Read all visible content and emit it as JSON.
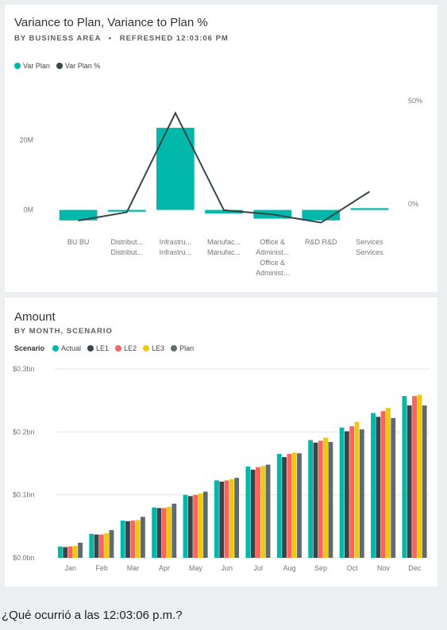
{
  "card1": {
    "title": "Variance to Plan, Variance to Plan %",
    "subtitle_area": "BY BUSINESS AREA",
    "subtitle_sep": "•",
    "subtitle_refreshed": "REFRESHED 12:03:06 PM"
  },
  "card2": {
    "title": "Amount",
    "subtitle": "BY MONTH, SCENARIO"
  },
  "question": "¿Qué ocurrió a las 12:03:06 p.m.?",
  "colors": {
    "teal": "#01b8aa",
    "dark": "#374649",
    "red": "#fd625e",
    "yellow": "#f2c80f",
    "plan": "#5f6b6d"
  },
  "chart_data": [
    {
      "type": "bar",
      "combo_line": true,
      "title": "Variance to Plan, Variance to Plan %",
      "categories": [
        [
          "BU BU"
        ],
        [
          "Distribut...",
          "Distribut..."
        ],
        [
          "Infrastru...",
          "Infrastru..."
        ],
        [
          "Manufac...",
          "Manufac..."
        ],
        [
          "Office &",
          "Administ...",
          "Office &",
          "Administ..."
        ],
        [
          "R&D R&D"
        ],
        [
          "Services",
          "Services"
        ]
      ],
      "series": [
        {
          "name": "Var Plan",
          "kind": "bar",
          "axis": "left",
          "values": [
            -3,
            -0.5,
            23.5,
            -1,
            -2.5,
            -3,
            0.5
          ]
        },
        {
          "name": "Var Plan %",
          "kind": "line",
          "axis": "right",
          "values": [
            -8,
            -4,
            44,
            -3,
            -5,
            -9,
            6
          ]
        }
      ],
      "y_left": {
        "ticks": [
          {
            "v": 20,
            "label": "20M"
          },
          {
            "v": 0,
            "label": "0M"
          }
        ],
        "range": [
          -6,
          36
        ]
      },
      "y_right": {
        "ticks": [
          {
            "v": 50,
            "label": "50%"
          },
          {
            "v": 0,
            "label": "0%"
          }
        ],
        "range": [
          -13,
          58
        ]
      },
      "legend": [
        {
          "name": "Var Plan",
          "color": "#01b8aa"
        },
        {
          "name": "Var Plan %",
          "color": "#374649"
        }
      ]
    },
    {
      "type": "bar",
      "title": "Amount",
      "legend_title": "Scenario",
      "categories": [
        "Jan",
        "Feb",
        "Mar",
        "Apr",
        "May",
        "Jun",
        "Jul",
        "Aug",
        "Sep",
        "Oct",
        "Nov",
        "Dec"
      ],
      "series": [
        {
          "name": "Actual",
          "color": "#01b8aa",
          "values": [
            0.018,
            0.038,
            0.059,
            0.08,
            0.1,
            0.123,
            0.145,
            0.165,
            0.187,
            0.207,
            0.23,
            0.257
          ]
        },
        {
          "name": "LE1",
          "color": "#374649",
          "values": [
            0.017,
            0.037,
            0.058,
            0.079,
            0.098,
            0.121,
            0.14,
            0.16,
            0.183,
            0.201,
            0.224,
            0.242
          ]
        },
        {
          "name": "LE2",
          "color": "#fd625e",
          "values": [
            0.018,
            0.037,
            0.059,
            0.079,
            0.1,
            0.123,
            0.144,
            0.165,
            0.186,
            0.209,
            0.233,
            0.257
          ]
        },
        {
          "name": "LE3",
          "color": "#f2c80f",
          "values": [
            0.019,
            0.039,
            0.06,
            0.081,
            0.102,
            0.125,
            0.146,
            0.167,
            0.191,
            0.216,
            0.238,
            0.259
          ]
        },
        {
          "name": "Plan",
          "color": "#5f6b6d",
          "values": [
            0.024,
            0.044,
            0.065,
            0.086,
            0.105,
            0.127,
            0.148,
            0.166,
            0.184,
            0.204,
            0.222,
            0.242
          ]
        }
      ],
      "y_ticks": [
        {
          "v": 0.3,
          "label": "$0.3bn"
        },
        {
          "v": 0.2,
          "label": "$0.2bn"
        },
        {
          "v": 0.1,
          "label": "$0.1bn"
        },
        {
          "v": 0.0,
          "label": "$0.0bn"
        }
      ],
      "ylim": [
        0,
        0.3
      ],
      "grid": true
    }
  ]
}
